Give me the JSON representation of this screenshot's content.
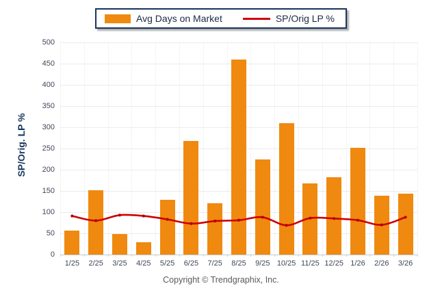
{
  "legend": {
    "bar_label": "Avg Days on Market",
    "line_label": "SP/Orig LP %"
  },
  "footer": {
    "copyright": "Copyright © Trendgraphix, Inc."
  },
  "colors": {
    "bar": "#F0890F",
    "line": "#CC0000",
    "line_marker": "#B50000",
    "legend_border": "#16325C",
    "axis_title_text": "#17365D",
    "tick_text": "#3D4757",
    "gridline": "#ECECEC",
    "baseline": "#C6C6C6",
    "footer_text": "#595959"
  },
  "chart_data": {
    "type": "bar",
    "title": "",
    "xlabel": "",
    "ylabel": "SP/Orig. LP %",
    "ylim": [
      0,
      500
    ],
    "ytick_step": 50,
    "grid": true,
    "legend_position": "top-center",
    "categories": [
      "1/25",
      "2/25",
      "3/25",
      "4/25",
      "5/25",
      "6/25",
      "7/25",
      "8/25",
      "9/25",
      "10/25",
      "11/25",
      "12/25",
      "1/26",
      "2/26",
      "3/26"
    ],
    "series": [
      {
        "name": "Avg Days on Market",
        "type": "bar",
        "color": "#F0890F",
        "values": [
          57,
          152,
          49,
          29,
          129,
          267,
          121,
          459,
          225,
          309,
          168,
          182,
          252,
          139,
          144
        ]
      },
      {
        "name": "SP/Orig LP %",
        "type": "line",
        "color": "#CC0000",
        "values": [
          91,
          80,
          93,
          91,
          83,
          73,
          79,
          81,
          88,
          69,
          86,
          85,
          81,
          70,
          88
        ]
      }
    ]
  }
}
